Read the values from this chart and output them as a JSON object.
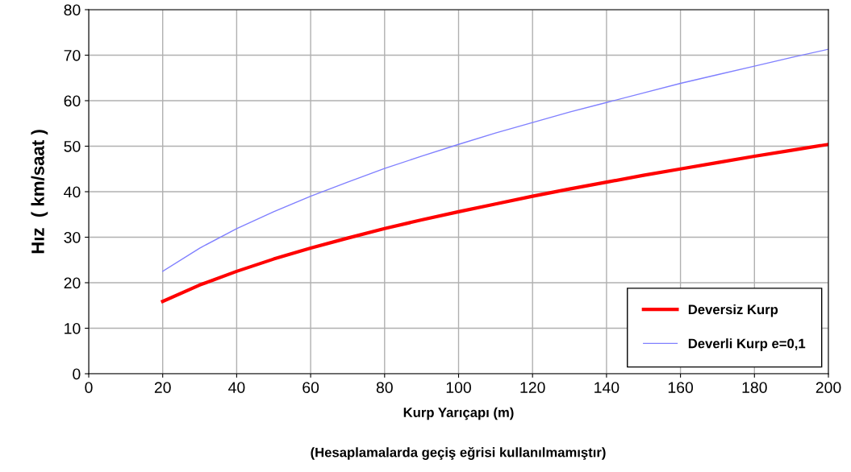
{
  "chart_data": {
    "type": "line",
    "xlabel": "Kurp Yarıçapı (m)",
    "ylabel": "Hız  ( km/saat )",
    "annotations": [
      "(Hesaplamalarda geçiş eğrisi kullanılmamıştır)"
    ],
    "xlim": [
      0,
      200
    ],
    "xticks": [
      0,
      20,
      40,
      60,
      80,
      100,
      120,
      140,
      160,
      180,
      200
    ],
    "ylim": [
      0,
      80
    ],
    "yticks": [
      0,
      10,
      20,
      30,
      40,
      50,
      60,
      70,
      80
    ],
    "grid": true,
    "legend": "bottom right",
    "marker": "none",
    "line_style": "solid",
    "x": [
      20,
      30,
      40,
      50,
      60,
      70,
      80,
      90,
      100,
      110,
      120,
      130,
      140,
      150,
      160,
      170,
      180,
      190,
      200
    ],
    "series": [
      {
        "name": "Deversiz Kurp",
        "color": "#ff0000",
        "values": [
          15.9,
          19.5,
          22.5,
          25.2,
          27.6,
          29.8,
          31.9,
          33.8,
          35.6,
          37.3,
          39.0,
          40.6,
          42.1,
          43.6,
          45.0,
          46.4,
          47.8,
          49.1,
          50.4
        ]
      },
      {
        "name": "Deverli Kurp e=0,1",
        "color": "#8080ff",
        "values": [
          22.5,
          27.6,
          31.9,
          35.6,
          39.0,
          42.1,
          45.1,
          47.8,
          50.4,
          52.9,
          55.2,
          57.5,
          59.6,
          61.7,
          63.8,
          65.7,
          67.6,
          69.5,
          71.3
        ]
      }
    ]
  }
}
